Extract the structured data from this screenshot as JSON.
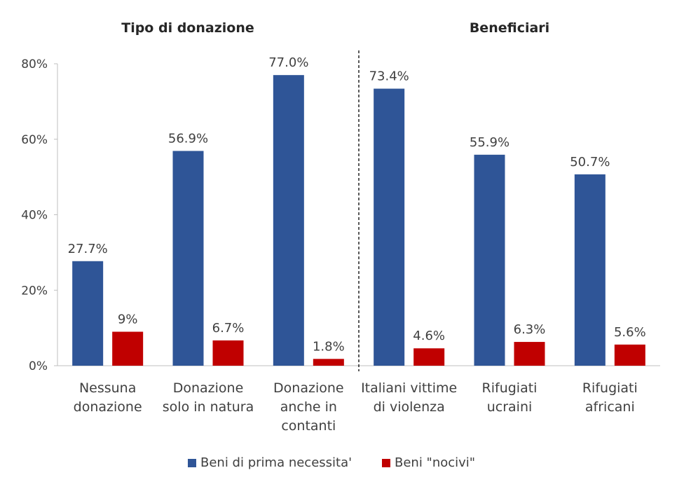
{
  "chart_data": {
    "type": "bar",
    "group_titles": [
      "Tipo di donazione",
      "Beneficiari"
    ],
    "categories": [
      [
        "Nessuna",
        "donazione"
      ],
      [
        "Donazione",
        "solo in natura"
      ],
      [
        "Donazione",
        "anche in",
        "contanti"
      ],
      [
        "Italiani vittime",
        "di violenza"
      ],
      [
        "Rifugiati",
        "ucraini"
      ],
      [
        "Rifugiati",
        "africani"
      ]
    ],
    "series": [
      {
        "name": "Beni di prima necessita'",
        "color": "#2F5597",
        "values": [
          27.7,
          56.9,
          77.0,
          73.4,
          55.9,
          50.7
        ],
        "labels": [
          "27.7%",
          "56.9%",
          "77.0%",
          "73.4%",
          "55.9%",
          "50.7%"
        ]
      },
      {
        "name": "Beni \"nocivi\"",
        "color": "#C00000",
        "values": [
          9,
          6.7,
          1.8,
          4.6,
          6.3,
          5.6
        ],
        "labels": [
          "9%",
          "6.7%",
          "1.8%",
          "4.6%",
          "6.3%",
          "5.6%"
        ]
      }
    ],
    "ylim": [
      0,
      80
    ],
    "yticks": [
      "0%",
      "20%",
      "40%",
      "60%",
      "80%"
    ],
    "ytick_values": [
      0,
      20,
      40,
      60,
      80
    ],
    "grid": false,
    "legend_position": "bottom",
    "group_separator": "dashed line between 3rd and 4th category"
  }
}
